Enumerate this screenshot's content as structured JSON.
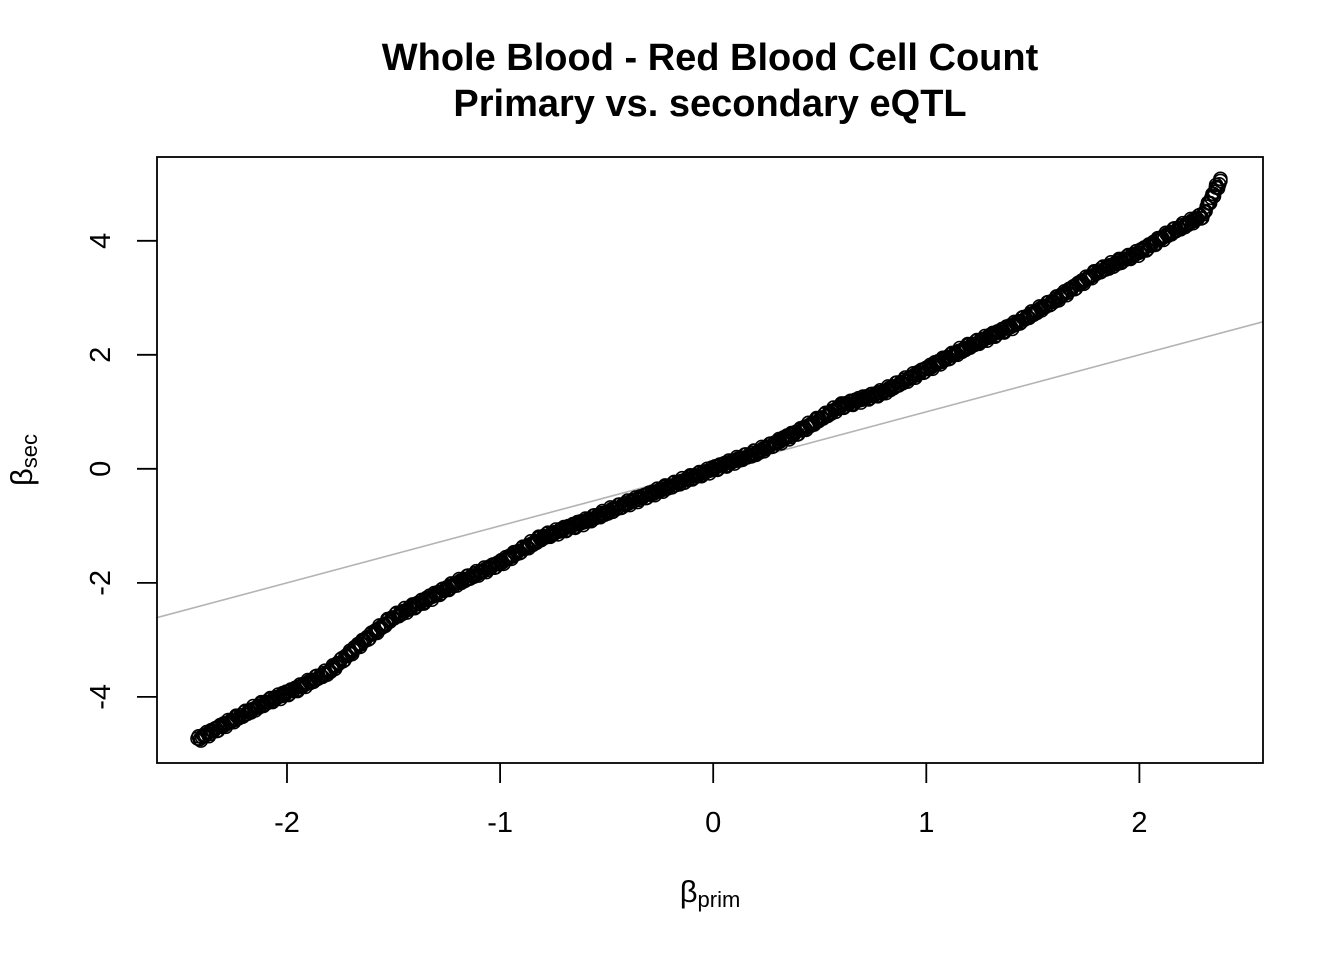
{
  "chart_data": {
    "type": "scatter",
    "title": "Whole Blood - Red Blood Cell Count",
    "subtitle": "Primary vs. secondary eQTL",
    "xlabel": {
      "symbol": "β",
      "subscript": "prim"
    },
    "ylabel": {
      "symbol": "β",
      "subscript": "sec"
    },
    "xlim": [
      -2.61,
      2.58
    ],
    "ylim": [
      -5.16,
      5.47
    ],
    "xticks": [
      -2,
      -1,
      0,
      1,
      2
    ],
    "yticks": [
      -4,
      -2,
      0,
      2,
      4
    ],
    "grid": false,
    "legend": "none",
    "marker": "open-circle",
    "point_color": "#000000",
    "reference_line": {
      "slope": 1,
      "intercept": 0,
      "color": "#b3b3b3"
    },
    "curve_anchors": [
      [
        -2.42,
        -4.75
      ],
      [
        -2.3,
        -4.5
      ],
      [
        -2.1,
        -4.1
      ],
      [
        -1.95,
        -3.85
      ],
      [
        -1.8,
        -3.55
      ],
      [
        -1.65,
        -3.05
      ],
      [
        -1.5,
        -2.6
      ],
      [
        -1.35,
        -2.3
      ],
      [
        -1.2,
        -2.0
      ],
      [
        -1.0,
        -1.65
      ],
      [
        -0.8,
        -1.2
      ],
      [
        -0.6,
        -0.92
      ],
      [
        -0.4,
        -0.6
      ],
      [
        -0.2,
        -0.3
      ],
      [
        0.0,
        0.0
      ],
      [
        0.2,
        0.28
      ],
      [
        0.4,
        0.65
      ],
      [
        0.6,
        1.1
      ],
      [
        0.8,
        1.35
      ],
      [
        1.0,
        1.75
      ],
      [
        1.2,
        2.15
      ],
      [
        1.4,
        2.5
      ],
      [
        1.6,
        2.95
      ],
      [
        1.8,
        3.45
      ],
      [
        2.0,
        3.8
      ],
      [
        2.15,
        4.15
      ],
      [
        2.3,
        4.45
      ],
      [
        2.33,
        4.7
      ],
      [
        2.38,
        5.05
      ]
    ]
  }
}
